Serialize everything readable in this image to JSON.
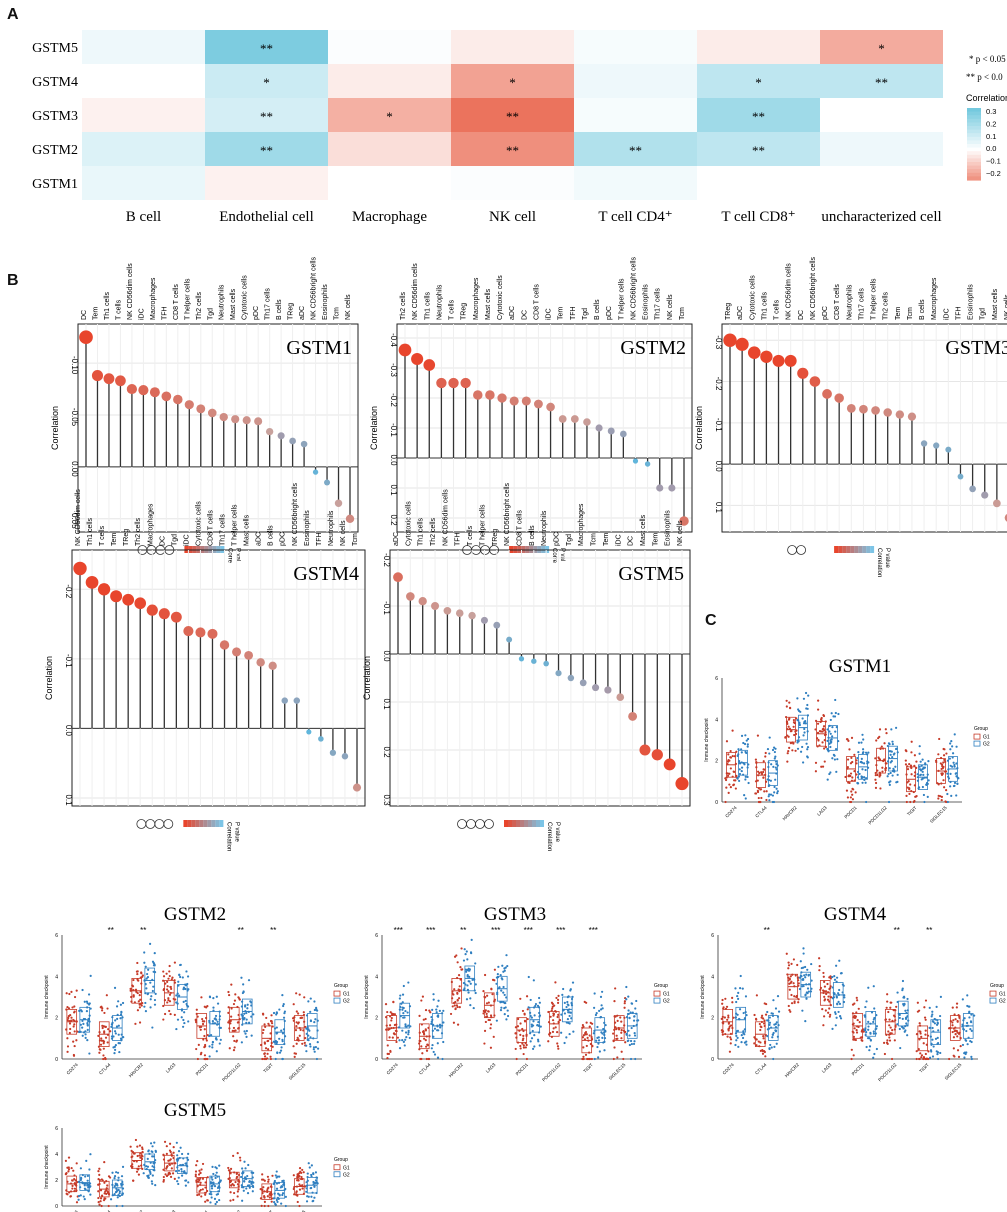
{
  "panels": {
    "a": "A",
    "b": "B",
    "c": "C"
  },
  "heatmap": {
    "rows": [
      "GSTM5",
      "GSTM4",
      "GSTM3",
      "GSTM2",
      "GSTM1"
    ],
    "cols": [
      "B cell",
      "Endothelial cell",
      "Macrophage",
      "NK cell",
      "T cell CD4⁺",
      "T cell CD8⁺",
      "uncharacterized cell"
    ],
    "legend_sig1": "* p < 0.05",
    "legend_sig2": "** p < 0.0",
    "legend_title": "Correlation",
    "legend_ticks": [
      "0.3",
      "0.2",
      "0.1",
      "0.0",
      "−0.1",
      "−0.2"
    ],
    "colors": {
      "positive": "#74c9de",
      "negative": "#ea6a52"
    }
  },
  "chart_data": [
    {
      "type": "heatmap",
      "rows": [
        "GSTM5",
        "GSTM4",
        "GSTM3",
        "GSTM2",
        "GSTM1"
      ],
      "cols": [
        "B cell",
        "Endothelial cell",
        "Macrophage",
        "NK cell",
        "T cell CD4⁺",
        "T cell CD8⁺",
        "uncharacterized cell"
      ],
      "values": [
        [
          0.04,
          0.3,
          0.01,
          -0.04,
          0.02,
          -0.04,
          -0.18
        ],
        [
          0.0,
          0.12,
          -0.04,
          -0.2,
          0.04,
          0.15,
          0.15
        ],
        [
          -0.03,
          0.1,
          -0.17,
          -0.3,
          0.02,
          0.22,
          0.0
        ],
        [
          0.08,
          0.22,
          -0.07,
          -0.24,
          0.18,
          0.15,
          0.04
        ],
        [
          0.05,
          -0.03,
          0.0,
          0.01,
          0.03,
          0.0,
          0.0
        ]
      ],
      "sig": [
        [
          "",
          "**",
          "",
          "",
          "",
          "",
          "*"
        ],
        [
          "",
          "*",
          "",
          "*",
          "",
          "*",
          "**"
        ],
        [
          "",
          "**",
          "*",
          "**",
          "",
          "**",
          ""
        ],
        [
          "",
          "**",
          "",
          "**",
          "**",
          "**",
          ""
        ],
        [
          "",
          "",
          "",
          "",
          "",
          "",
          ""
        ]
      ],
      "ylim": [
        -0.2,
        0.3
      ]
    },
    {
      "type": "scatter",
      "title": "GSTM1",
      "ylabel": "Correlation",
      "categories": [
        "DC",
        "Tem",
        "Th1 cells",
        "T cells",
        "NK CD56dim cells",
        "iDC",
        "Macrophages",
        "TFH",
        "CD8 T cells",
        "T helper cells",
        "Th2 cells",
        "Tgd",
        "Neutrophils",
        "Mast cells",
        "Cytotoxic cells",
        "pDC",
        "Th17 cells",
        "B cells",
        "TReg",
        "aDC",
        "NK CD56bright cells",
        "Eosinophils",
        "Tcm",
        "NK cells"
      ],
      "values": [
        -0.125,
        -0.088,
        -0.085,
        -0.083,
        -0.075,
        -0.074,
        -0.072,
        -0.068,
        -0.065,
        -0.06,
        -0.056,
        -0.052,
        -0.048,
        -0.046,
        -0.045,
        -0.044,
        -0.034,
        -0.03,
        -0.025,
        -0.022,
        0.005,
        0.015,
        0.035,
        0.05
      ],
      "ylim": [
        -0.13,
        0.055
      ],
      "yticks": [
        -0.1,
        -0.05,
        0.0,
        0.05
      ],
      "ytick_labels": [
        "-0.10",
        "-0.05",
        "0.00",
        "0.05"
      ],
      "legend": [
        "Corre",
        "P val"
      ]
    },
    {
      "type": "scatter",
      "title": "GSTM2",
      "ylabel": "Correlation",
      "categories": [
        "Th2 cells",
        "NK CD56dim cells",
        "Th1 cells",
        "Neutrophils",
        "T cells",
        "TReg",
        "Macrophages",
        "Mast cells",
        "Cytotoxic cells",
        "aDC",
        "DC",
        "CD8 T cells",
        "iDC",
        "Tem",
        "TFH",
        "Tgd",
        "B cells",
        "pDC",
        "T helper cells",
        "NK CD56bright cells",
        "Eosinophils",
        "Th17 cells",
        "NK cells",
        "Tcm"
      ],
      "values": [
        -0.36,
        -0.33,
        -0.31,
        -0.25,
        -0.25,
        -0.25,
        -0.21,
        -0.21,
        -0.2,
        -0.19,
        -0.19,
        -0.18,
        -0.17,
        -0.13,
        -0.13,
        -0.12,
        -0.1,
        -0.09,
        -0.08,
        0.01,
        0.02,
        0.1,
        0.1,
        0.21
      ],
      "ylim": [
        -0.42,
        0.22
      ],
      "yticks": [
        -0.4,
        -0.3,
        -0.2,
        -0.1,
        0.0,
        0.1,
        0.2
      ],
      "ytick_labels": [
        "-0.4",
        "-0.3",
        "-0.2",
        "-0.1",
        "0.0",
        "0.1",
        "0.2"
      ],
      "legend": [
        "Corre",
        "P val"
      ]
    },
    {
      "type": "scatter",
      "title": "GSTM3",
      "ylabel": "Correlation",
      "categories": [
        "TReg",
        "aDC",
        "Cytotoxic cells",
        "Th1 cells",
        "T cells",
        "NK CD56dim cells",
        "DC",
        "NK CD56bright cells",
        "pDC",
        "CD8 T cells",
        "Neutrophils",
        "Th17 cells",
        "T helper cells",
        "Th2 cells",
        "Tem",
        "Tcm",
        "B cells",
        "Macrophages",
        "iDC",
        "TFH",
        "Eosinophils",
        "Tgd",
        "Mast cells",
        "NK cells"
      ],
      "values": [
        -0.3,
        -0.29,
        -0.27,
        -0.26,
        -0.25,
        -0.25,
        -0.22,
        -0.2,
        -0.17,
        -0.16,
        -0.135,
        -0.133,
        -0.13,
        -0.125,
        -0.12,
        -0.115,
        -0.05,
        -0.045,
        -0.035,
        0.03,
        0.06,
        0.075,
        0.095,
        0.13
      ],
      "ylim": [
        -0.32,
        0.145
      ],
      "yticks": [
        -0.3,
        -0.2,
        -0.1,
        0.0,
        0.1
      ],
      "ytick_labels": [
        "-0.3",
        "-0.2",
        "-0.1",
        "0.0",
        "0.1"
      ],
      "legend": [
        "Correlation",
        "P value"
      ]
    },
    {
      "type": "scatter",
      "title": "GSTM4",
      "ylabel": "Correlation",
      "categories": [
        "NK CD56dim cells",
        "Th1 cells",
        "T cells",
        "Tem",
        "TReg",
        "Th2 cells",
        "Macrophages",
        "DC",
        "Tgd",
        "iDC",
        "Cytotoxic cells",
        "CD8 T cells",
        "Th17 cells",
        "T helper cells",
        "Mast cells",
        "aDC",
        "B cells",
        "pDC",
        "NK CD56bright cells",
        "Eosinophils",
        "TFH",
        "Neutrophils",
        "NK cells",
        "Tcm"
      ],
      "values": [
        -0.23,
        -0.21,
        -0.2,
        -0.19,
        -0.185,
        -0.18,
        -0.17,
        -0.165,
        -0.16,
        -0.14,
        -0.138,
        -0.136,
        -0.12,
        -0.11,
        -0.105,
        -0.095,
        -0.09,
        -0.04,
        -0.04,
        0.005,
        0.015,
        0.035,
        0.04,
        0.085
      ],
      "ylim": [
        -0.245,
        0.1
      ],
      "yticks": [
        -0.2,
        -0.1,
        0.0,
        0.1
      ],
      "ytick_labels": [
        "-0.2",
        "-0.1",
        "0.0",
        "0.1"
      ],
      "legend": [
        "Correlation",
        "P value"
      ]
    },
    {
      "type": "scatter",
      "title": "GSTM5",
      "ylabel": "Correlation",
      "categories": [
        "aDC",
        "Cytotoxic cells",
        "Th1 cells",
        "Th2 cells",
        "NK CD56dim cells",
        "TFH",
        "T cells",
        "T helper cells",
        "TReg",
        "NK CD56bright cells",
        "CD8 T cells",
        "B cells",
        "Neutrophils",
        "pDC",
        "Tgd",
        "Macrophages",
        "Tcm",
        "Tem",
        "iDC",
        "DC",
        "Mast cells",
        "Tem",
        "Eosinophils",
        "NK cells"
      ],
      "values": [
        -0.16,
        -0.12,
        -0.11,
        -0.1,
        -0.09,
        -0.085,
        -0.08,
        -0.07,
        -0.06,
        -0.03,
        0.01,
        0.015,
        0.02,
        0.04,
        0.05,
        0.06,
        0.07,
        0.075,
        0.09,
        0.13,
        0.2,
        0.21,
        0.23,
        0.27
      ],
      "ylim": [
        -0.2,
        0.3
      ],
      "yticks": [
        -0.2,
        -0.1,
        0.0,
        0.1,
        0.2,
        0.3
      ],
      "ytick_labels": [
        "-0.2",
        "-0.1",
        "0.0",
        "0.1",
        "0.2",
        "0.3"
      ],
      "legend": [
        "Correlation",
        "P value"
      ]
    },
    {
      "type": "box",
      "title": "GSTM1",
      "ylabel": "Immune checkpoint",
      "categories": [
        "CD274",
        "CTLA4",
        "HAVCR2",
        "LAG3",
        "PDCD1",
        "PDCD1LG2",
        "TIGIT",
        "SIGLEC15"
      ],
      "series": [
        {
          "name": "G1",
          "medians": [
            1.8,
            1.3,
            3.5,
            3.3,
            1.6,
            2.0,
            1.1,
            1.5
          ]
        },
        {
          "name": "G2",
          "medians": [
            1.9,
            1.4,
            3.6,
            3.1,
            1.7,
            2.1,
            1.2,
            1.6
          ]
        }
      ],
      "sig": [
        "",
        "",
        "",
        "",
        "",
        "",
        "",
        ""
      ],
      "ylim": [
        0,
        6
      ],
      "legend_title": "Group"
    },
    {
      "type": "box",
      "title": "GSTM2",
      "ylabel": "Immune checkpoint",
      "categories": [
        "CD274",
        "CTLA4",
        "HAVCR2",
        "LAG3",
        "PDCD1",
        "PDCD1LG2",
        "TIGIT",
        "SIGLEC15"
      ],
      "series": [
        {
          "name": "G1",
          "medians": [
            1.8,
            1.2,
            3.3,
            3.2,
            1.6,
            1.9,
            1.0,
            1.5
          ]
        },
        {
          "name": "G2",
          "medians": [
            1.9,
            1.5,
            3.8,
            3.0,
            1.7,
            2.3,
            1.3,
            1.6
          ]
        }
      ],
      "sig": [
        "",
        "**",
        "**",
        "",
        "",
        "**",
        "**",
        ""
      ],
      "ylim": [
        0,
        6
      ],
      "legend_title": "Group"
    },
    {
      "type": "box",
      "title": "GSTM3",
      "ylabel": "Immune checkpoint",
      "categories": [
        "CD274",
        "CTLA4",
        "HAVCR2",
        "LAG3",
        "PDCD1",
        "PDCD1LG2",
        "TIGIT",
        "SIGLEC15"
      ],
      "series": [
        {
          "name": "G1",
          "medians": [
            1.5,
            1.1,
            3.3,
            2.6,
            1.4,
            1.7,
            0.9,
            1.5
          ]
        },
        {
          "name": "G2",
          "medians": [
            2.1,
            1.6,
            3.9,
            3.4,
            1.9,
            2.4,
            1.4,
            1.6
          ]
        }
      ],
      "sig": [
        "***",
        "***",
        "**",
        "***",
        "***",
        "***",
        "***",
        ""
      ],
      "ylim": [
        0,
        6
      ],
      "legend_title": "Group"
    },
    {
      "type": "box",
      "title": "GSTM4",
      "ylabel": "Immune checkpoint",
      "categories": [
        "CD274",
        "CTLA4",
        "HAVCR2",
        "LAG3",
        "PDCD1",
        "PDCD1LG2",
        "TIGIT",
        "SIGLEC15"
      ],
      "series": [
        {
          "name": "G1",
          "medians": [
            1.8,
            1.2,
            3.5,
            3.2,
            1.6,
            1.8,
            1.0,
            1.5
          ]
        },
        {
          "name": "G2",
          "medians": [
            1.9,
            1.5,
            3.6,
            3.1,
            1.7,
            2.2,
            1.3,
            1.6
          ]
        }
      ],
      "sig": [
        "",
        "**",
        "",
        "",
        "",
        "**",
        "**",
        ""
      ],
      "ylim": [
        0,
        6
      ],
      "legend_title": "Group"
    },
    {
      "type": "box",
      "title": "GSTM5",
      "ylabel": "Immune checkpoint",
      "categories": [
        "CD274",
        "CTLA4",
        "HAVCR2",
        "LAG3",
        "PDCD1",
        "PDCD1LG2",
        "TIGIT",
        "SIGLEC15"
      ],
      "series": [
        {
          "name": "G1",
          "medians": [
            1.7,
            1.3,
            3.5,
            3.3,
            1.6,
            2.0,
            1.1,
            1.5
          ]
        },
        {
          "name": "G2",
          "medians": [
            1.8,
            1.4,
            3.4,
            3.1,
            1.7,
            2.1,
            1.2,
            1.6
          ]
        }
      ],
      "sig": [
        "",
        "",
        "",
        "",
        "",
        "",
        "",
        ""
      ],
      "ylim": [
        0,
        6
      ],
      "legend_title": "Group"
    }
  ]
}
